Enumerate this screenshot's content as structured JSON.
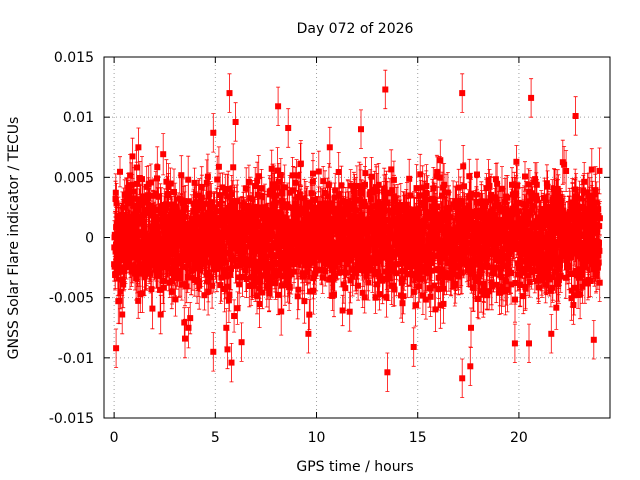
{
  "chart_data": {
    "type": "scatter",
    "title": "Day 072 of 2026",
    "xlabel": "GPS time / hours",
    "ylabel": "GNSS Solar Flare indicator / TECUs",
    "xlim": [
      -0.5,
      24.5
    ],
    "ylim": [
      -0.015,
      0.015
    ],
    "x_ticks": [
      0,
      5,
      10,
      15,
      20
    ],
    "x_tick_labels": [
      "0",
      "5",
      "10",
      "15",
      "20"
    ],
    "y_ticks": [
      -0.015,
      -0.01,
      -0.005,
      0,
      0.005,
      0.01,
      0.015
    ],
    "y_tick_labels": [
      "-0.015",
      "-0.01",
      "-0.005",
      "0",
      "0.005",
      "0.01",
      "0.015"
    ],
    "grid": true,
    "marker": "square",
    "error_bars": true,
    "series_color": "#ff0000",
    "series": [
      {
        "name": "indicator",
        "sampling": "dense 30-second samples from 0 to 24 h, values mostly within ±0.006 TECU, each with error bar ≈ ±0.0015 TECU",
        "outliers": [
          {
            "x": 0.1,
            "y": -0.0092
          },
          {
            "x": 0.4,
            "y": -0.0064
          },
          {
            "x": 1.2,
            "y": 0.0075
          },
          {
            "x": 2.3,
            "y": -0.0064
          },
          {
            "x": 3.5,
            "y": -0.0084
          },
          {
            "x": 4.9,
            "y": 0.0087
          },
          {
            "x": 4.9,
            "y": -0.0095
          },
          {
            "x": 5.6,
            "y": -0.0093
          },
          {
            "x": 5.7,
            "y": 0.012
          },
          {
            "x": 5.8,
            "y": -0.0104
          },
          {
            "x": 6.0,
            "y": 0.0096
          },
          {
            "x": 6.3,
            "y": -0.0087
          },
          {
            "x": 8.1,
            "y": 0.0109
          },
          {
            "x": 8.6,
            "y": 0.0091
          },
          {
            "x": 9.6,
            "y": -0.008
          },
          {
            "x": 12.2,
            "y": 0.009
          },
          {
            "x": 13.4,
            "y": 0.0123
          },
          {
            "x": 13.5,
            "y": -0.0112
          },
          {
            "x": 14.8,
            "y": -0.0091
          },
          {
            "x": 17.2,
            "y": 0.012
          },
          {
            "x": 17.2,
            "y": -0.0117
          },
          {
            "x": 17.6,
            "y": -0.0107
          },
          {
            "x": 20.6,
            "y": 0.0116
          },
          {
            "x": 19.8,
            "y": -0.0088
          },
          {
            "x": 20.5,
            "y": -0.0088
          },
          {
            "x": 21.6,
            "y": -0.008
          },
          {
            "x": 22.8,
            "y": 0.0101
          },
          {
            "x": 23.7,
            "y": -0.0085
          }
        ]
      }
    ]
  }
}
